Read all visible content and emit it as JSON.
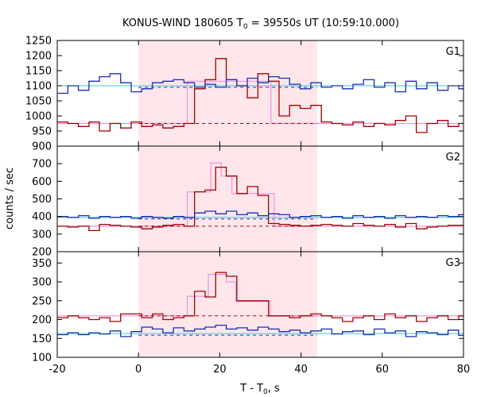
{
  "chart_data": {
    "type": "line",
    "title_main": "KONUS-WIND 180605 T",
    "title_sub": "0",
    "title_rest": " = 39550s UT (10:59:10.000)",
    "xlabel_main": "T - T",
    "xlabel_sub": "0",
    "xlabel_rest": ", s",
    "ylabel": "counts / sec",
    "xlim": [
      -20,
      80
    ],
    "x_ticks": [
      "-20",
      "0",
      "20",
      "40",
      "60",
      "80"
    ],
    "x_tick_values": [
      -20,
      0,
      20,
      40,
      60,
      80
    ],
    "highlight_x": [
      0,
      44
    ],
    "colors": {
      "highlight": "#ffe6ea",
      "red": "#a00000",
      "blue": "#1a2db0",
      "pink": "#f090e0",
      "cyan": "#40c8d8",
      "dashed_red": "#a00000",
      "dashed_blue": "#1a2db0"
    },
    "panels": [
      {
        "label": "G1",
        "ylim": [
          900,
          1250
        ],
        "y_ticks": [
          "900",
          "950",
          "1000",
          "1050",
          "1100",
          "1150",
          "1200",
          "1250"
        ],
        "y_tick_values": [
          900,
          950,
          1000,
          1050,
          1100,
          1150,
          1200,
          1250
        ],
        "blue_bg": 1100,
        "red_bg": 975,
        "red_model": [
          [
            -20,
            975
          ],
          [
            12,
            975
          ],
          [
            12,
            1115
          ],
          [
            32.6,
            1115
          ],
          [
            32.6,
            975
          ],
          [
            80,
            975
          ]
        ],
        "series": [
          {
            "color": "red",
            "x": [
              -20,
              -17.4,
              -14.8,
              -12.2,
              -9.6,
              -7,
              -4.4,
              -1.8,
              0.8,
              3.4,
              6,
              8.6,
              11.2,
              13.8,
              16.4,
              19,
              21.6,
              24.2,
              26.8,
              29.4,
              32,
              34.6,
              37.2,
              39.8,
              42.4,
              45,
              47.6,
              50.2,
              52.8,
              55.4,
              58,
              60.6,
              63.2,
              65.8,
              68.4,
              71,
              73.6,
              76.2,
              78.8
            ],
            "y": [
              980,
              975,
              965,
              980,
              950,
              975,
              960,
              980,
              965,
              970,
              960,
              965,
              975,
              1090,
              1120,
              1190,
              1120,
              1100,
              1060,
              1140,
              1115,
              1000,
              1035,
              1025,
              1035,
              980,
              975,
              970,
              980,
              965,
              975,
              970,
              985,
              1000,
              945,
              975,
              985,
              965,
              975
            ]
          },
          {
            "color": "blue",
            "x": [
              -20,
              -17.4,
              -14.8,
              -12.2,
              -9.6,
              -7,
              -4.4,
              -1.8,
              0.8,
              3.4,
              6,
              8.6,
              11.2,
              13.8,
              16.4,
              19,
              21.6,
              24.2,
              26.8,
              29.4,
              32,
              34.6,
              37.2,
              39.8,
              42.4,
              45,
              47.6,
              50.2,
              52.8,
              55.4,
              58,
              60.6,
              63.2,
              65.8,
              68.4,
              71,
              73.6,
              76.2,
              78.8
            ],
            "y": [
              1075,
              1100,
              1085,
              1115,
              1130,
              1140,
              1110,
              1080,
              1090,
              1110,
              1115,
              1120,
              1110,
              1095,
              1105,
              1095,
              1120,
              1100,
              1125,
              1110,
              1130,
              1125,
              1105,
              1090,
              1110,
              1095,
              1100,
              1090,
              1105,
              1120,
              1095,
              1110,
              1080,
              1115,
              1090,
              1110,
              1085,
              1100,
              1090
            ]
          }
        ]
      },
      {
        "label": "G2",
        "ylim": [
          200,
          800
        ],
        "y_ticks": [
          "200",
          "300",
          "400",
          "500",
          "600",
          "700"
        ],
        "y_tick_values": [
          200,
          300,
          400,
          500,
          600,
          700
        ],
        "blue_bg": 395,
        "red_bg": 345,
        "red_model": [
          [
            -20,
            345
          ],
          [
            12,
            345
          ],
          [
            12,
            540
          ],
          [
            17.8,
            540
          ],
          [
            17.8,
            705
          ],
          [
            20.4,
            705
          ],
          [
            20.4,
            630
          ],
          [
            23,
            630
          ],
          [
            23,
            530
          ],
          [
            33.4,
            530
          ],
          [
            33.4,
            345
          ],
          [
            80,
            345
          ]
        ],
        "series": [
          {
            "color": "red",
            "x": [
              -20,
              -17.4,
              -14.8,
              -12.2,
              -9.6,
              -7,
              -4.4,
              -1.8,
              0.8,
              3.4,
              6,
              8.6,
              11.2,
              13.8,
              16.4,
              19,
              21.6,
              24.2,
              26.8,
              29.4,
              32,
              34.6,
              37.2,
              39.8,
              42.4,
              45,
              47.6,
              50.2,
              52.8,
              55.4,
              58,
              60.6,
              63.2,
              65.8,
              68.4,
              71,
              73.6,
              76.2,
              78.8
            ],
            "y": [
              345,
              340,
              345,
              320,
              355,
              350,
              345,
              340,
              330,
              340,
              350,
              355,
              345,
              540,
              550,
              680,
              630,
              530,
              570,
              520,
              360,
              355,
              350,
              345,
              350,
              355,
              350,
              345,
              360,
              350,
              345,
              355,
              340,
              360,
              330,
              340,
              345,
              350,
              350
            ]
          },
          {
            "color": "blue",
            "x": [
              -20,
              -17.4,
              -14.8,
              -12.2,
              -9.6,
              -7,
              -4.4,
              -1.8,
              0.8,
              3.4,
              6,
              8.6,
              11.2,
              13.8,
              16.4,
              19,
              21.6,
              24.2,
              26.8,
              29.4,
              32,
              34.6,
              37.2,
              39.8,
              42.4,
              45,
              47.6,
              50.2,
              52.8,
              55.4,
              58,
              60.6,
              63.2,
              65.8,
              68.4,
              71,
              73.6,
              76.2,
              78.8
            ],
            "y": [
              400,
              395,
              405,
              390,
              400,
              395,
              400,
              390,
              400,
              395,
              390,
              400,
              395,
              420,
              430,
              415,
              430,
              410,
              420,
              405,
              415,
              410,
              395,
              400,
              405,
              395,
              400,
              390,
              405,
              395,
              400,
              390,
              405,
              395,
              400,
              395,
              405,
              400,
              410
            ]
          }
        ]
      },
      {
        "label": "G3",
        "ylim": [
          100,
          380
        ],
        "y_ticks": [
          "100",
          "150",
          "200",
          "250",
          "300",
          "350"
        ],
        "y_tick_values": [
          100,
          150,
          200,
          250,
          300,
          350
        ],
        "blue_bg": 163,
        "red_bg": 210,
        "red_model": [
          [
            -20,
            210
          ],
          [
            12,
            210
          ],
          [
            12,
            262
          ],
          [
            17.2,
            262
          ],
          [
            17.2,
            320
          ],
          [
            21.6,
            320
          ],
          [
            21.6,
            300
          ],
          [
            24,
            300
          ],
          [
            24,
            248
          ],
          [
            32.4,
            248
          ],
          [
            32.4,
            210
          ],
          [
            80,
            210
          ]
        ],
        "series": [
          {
            "color": "red",
            "x": [
              -20,
              -17.4,
              -14.8,
              -12.2,
              -9.6,
              -7,
              -4.4,
              -1.8,
              0.8,
              3.4,
              6,
              8.6,
              11.2,
              13.8,
              16.4,
              19,
              21.6,
              24.2,
              26.8,
              29.4,
              32,
              34.6,
              37.2,
              39.8,
              42.4,
              45,
              47.6,
              50.2,
              52.8,
              55.4,
              58,
              60.6,
              63.2,
              65.8,
              68.4,
              71,
              73.6,
              76.2,
              78.8
            ],
            "y": [
              205,
              210,
              205,
              200,
              205,
              195,
              215,
              215,
              205,
              215,
              200,
              205,
              210,
              275,
              260,
              325,
              315,
              250,
              250,
              250,
              210,
              210,
              205,
              210,
              215,
              210,
              205,
              195,
              205,
              210,
              200,
              215,
              205,
              210,
              195,
              205,
              210,
              200,
              210
            ]
          },
          {
            "color": "blue",
            "x": [
              -20,
              -17.4,
              -14.8,
              -12.2,
              -9.6,
              -7,
              -4.4,
              -1.8,
              0.8,
              3.4,
              6,
              8.6,
              11.2,
              13.8,
              16.4,
              19,
              21.6,
              24.2,
              26.8,
              29.4,
              32,
              34.6,
              37.2,
              39.8,
              42.4,
              45,
              47.6,
              50.2,
              52.8,
              55.4,
              58,
              60.6,
              63.2,
              65.8,
              68.4,
              71,
              73.6,
              76.2,
              78.8
            ],
            "y": [
              160,
              165,
              160,
              165,
              162,
              170,
              155,
              168,
              180,
              175,
              165,
              178,
              170,
              175,
              180,
              185,
              175,
              178,
              172,
              180,
              175,
              168,
              172,
              165,
              170,
              175,
              162,
              168,
              170,
              160,
              175,
              165,
              170,
              155,
              168,
              165,
              160,
              172,
              158
            ]
          }
        ]
      }
    ]
  }
}
